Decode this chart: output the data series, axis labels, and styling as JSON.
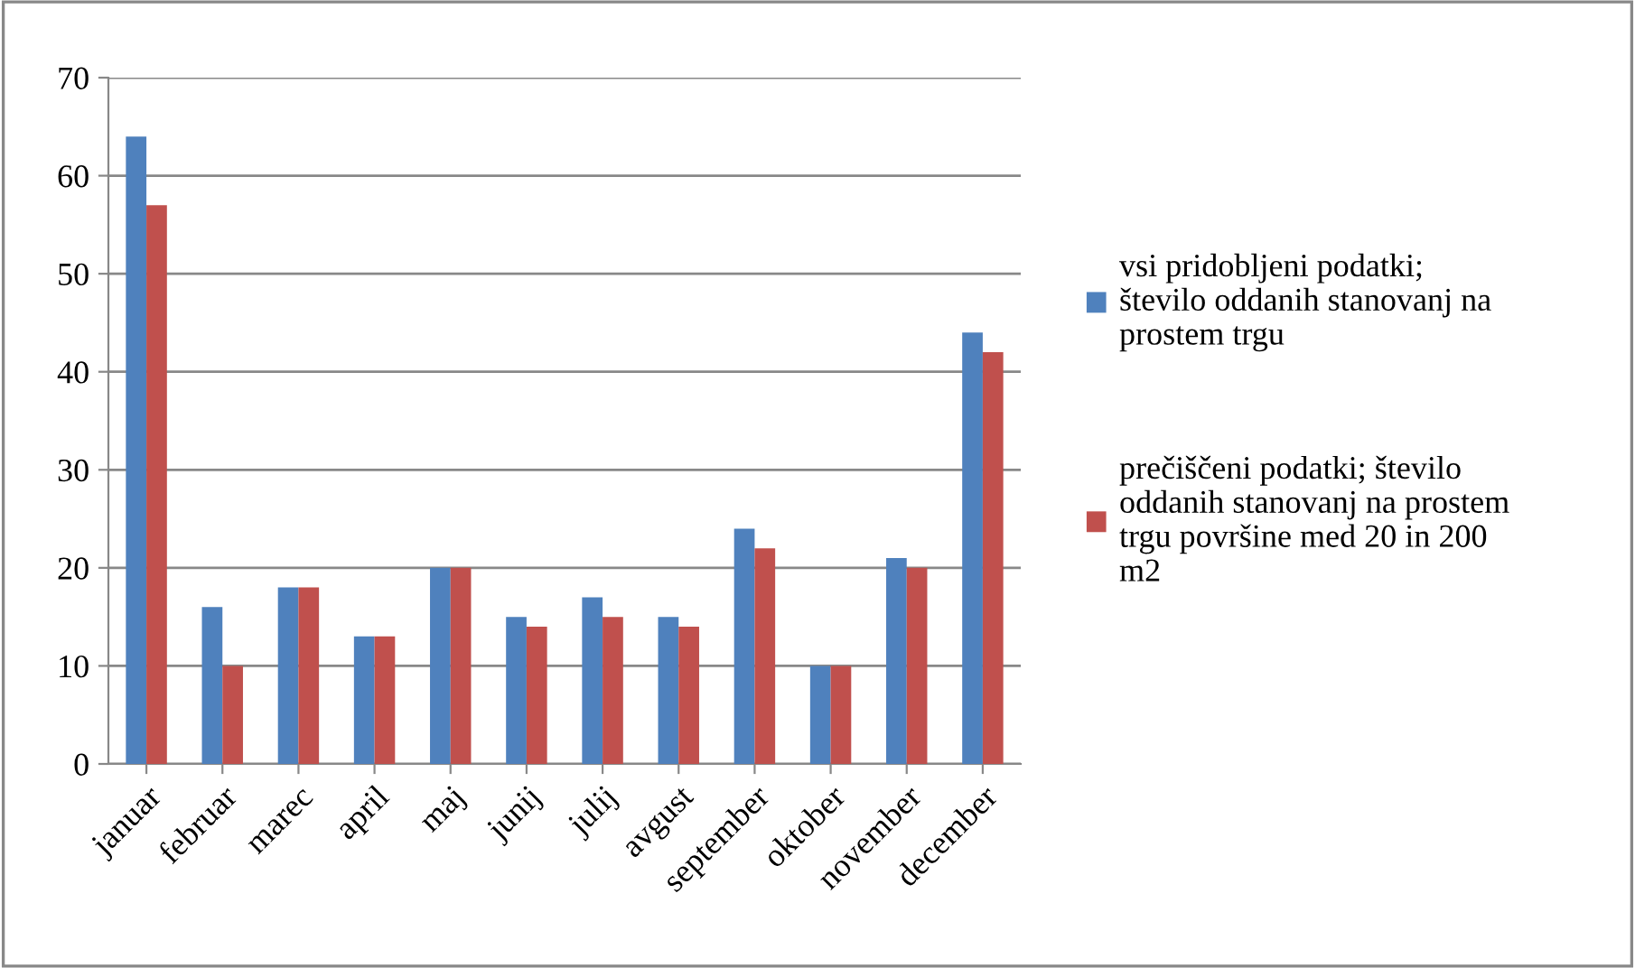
{
  "chart_data": {
    "type": "bar",
    "categories": [
      "januar",
      "februar",
      "marec",
      "april",
      "maj",
      "junij",
      "julij",
      "avgust",
      "september",
      "oktober",
      "november",
      "december"
    ],
    "series": [
      {
        "name": "vsi pridobljeni podatki; število oddanih stanovanj na prostem trgu",
        "color": "#4f81bd",
        "values": [
          64,
          16,
          18,
          13,
          20,
          15,
          17,
          15,
          24,
          10,
          21,
          44
        ]
      },
      {
        "name": "prečiščeni podatki; število oddanih stanovanj na prostem trgu površine med 20 in 200 m2",
        "color": "#c0504d",
        "values": [
          57,
          10,
          18,
          13,
          20,
          14,
          15,
          14,
          22,
          10,
          20,
          42
        ]
      }
    ],
    "ylim": [
      0,
      70
    ],
    "yticks": [
      0,
      10,
      20,
      30,
      40,
      50,
      60,
      70
    ],
    "grid": "y",
    "legend": "right"
  }
}
